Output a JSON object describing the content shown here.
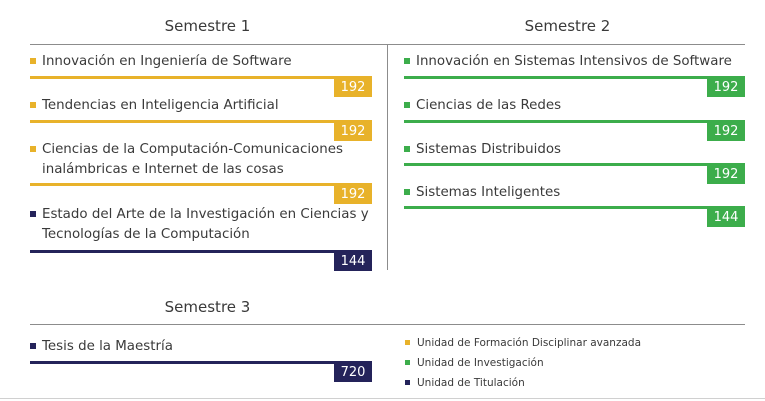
{
  "colors": {
    "yellow": "#e8b22a",
    "green": "#3cad4b",
    "navy": "#24235a"
  },
  "semester1": {
    "title": "Semestre 1",
    "courses": [
      {
        "line1": "Innovación en Ingeniería de Software",
        "line2": "",
        "credits": "192",
        "unit": "yellow"
      },
      {
        "line1": "Tendencias en Inteligencia Artificial",
        "line2": "",
        "credits": "192",
        "unit": "yellow"
      },
      {
        "line1": "Ciencias de la Computación-Comunicaciones",
        "line2": "inalámbricas e Internet de las cosas",
        "credits": "192",
        "unit": "yellow"
      },
      {
        "line1": "Estado del Arte de la Investigación en Ciencias y",
        "line2": "Tecnologías de la Computación",
        "credits": "144",
        "unit": "navy"
      }
    ]
  },
  "semester2": {
    "title": "Semestre 2",
    "courses": [
      {
        "line1": "Innovación en Sistemas Intensivos de Software",
        "credits": "192",
        "unit": "green"
      },
      {
        "line1": "Ciencias de las Redes",
        "credits": "192",
        "unit": "green"
      },
      {
        "line1": "Sistemas Distribuidos",
        "credits": "192",
        "unit": "green"
      },
      {
        "line1": "Sistemas Inteligentes",
        "credits": "144",
        "unit": "green"
      }
    ]
  },
  "semester3": {
    "title": "Semestre 3",
    "courses": [
      {
        "line1": "Tesis de la Maestría",
        "credits": "720",
        "unit": "navy"
      }
    ]
  },
  "legend": [
    {
      "label": "Unidad de Formación Disciplinar avanzada",
      "unit": "yellow"
    },
    {
      "label": "Unidad de Investigación",
      "unit": "green"
    },
    {
      "label": "Unidad de Titulación",
      "unit": "navy"
    }
  ]
}
